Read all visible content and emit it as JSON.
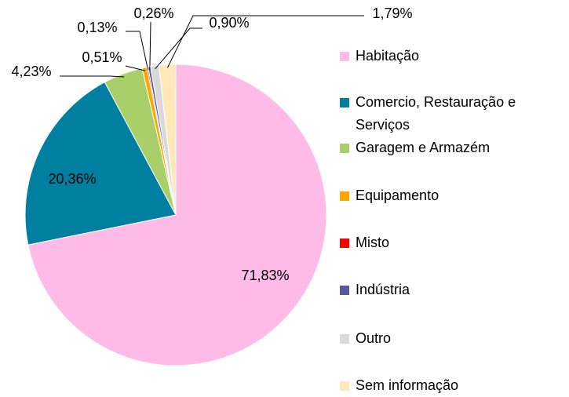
{
  "chart_data": {
    "type": "pie",
    "categories": [
      "Habitação",
      "Comercio, Restauração e Serviços",
      "Garagem e Armazém",
      "Equipamento",
      "Misto",
      "Indústria",
      "Outro",
      "Sem informação"
    ],
    "values": [
      71.83,
      20.36,
      4.23,
      0.51,
      0.13,
      0.26,
      0.9,
      1.79
    ],
    "value_labels": [
      "71,83%",
      "20,36%",
      "4,23%",
      "0,51%",
      "0,13%",
      "0,26%",
      "0,90%",
      "1,79%"
    ],
    "colors": [
      "#ffbbe8",
      "#007fa0",
      "#a9cf6b",
      "#ffa500",
      "#ff0000",
      "#5a5a9a",
      "#d9d9d9",
      "#ffe9bb"
    ],
    "legend": "right"
  }
}
